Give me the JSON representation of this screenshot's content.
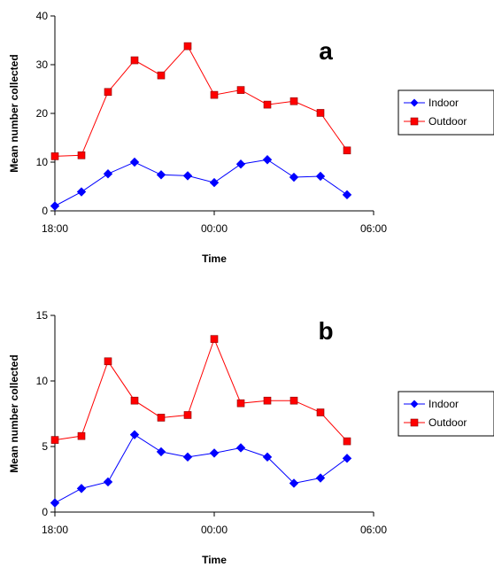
{
  "colors": {
    "indoor": "#0000ff",
    "outdoor": "#ff0000",
    "axis": "#000000"
  },
  "chart_data": [
    {
      "type": "line",
      "panel_label": "a",
      "xlabel": "Time",
      "ylabel": "Mean number collected",
      "x_tick_labels": [
        "18:00",
        "00:00",
        "06:00"
      ],
      "x_hours": [
        18,
        19,
        20,
        21,
        22,
        23,
        24,
        25,
        26,
        27,
        28,
        29
      ],
      "ylim": [
        0,
        40
      ],
      "yticks": [
        0,
        10,
        20,
        30,
        40
      ],
      "legend_position": "right",
      "series": [
        {
          "name": "Indoor",
          "marker": "diamond",
          "values": [
            1.0,
            3.9,
            7.6,
            10.0,
            7.4,
            7.2,
            5.8,
            9.6,
            10.5,
            6.9,
            7.1,
            3.3
          ]
        },
        {
          "name": "Outdoor",
          "marker": "square",
          "values": [
            11.2,
            11.4,
            24.4,
            30.9,
            27.8,
            33.8,
            23.8,
            24.8,
            21.8,
            22.5,
            20.1,
            12.4
          ]
        }
      ]
    },
    {
      "type": "line",
      "panel_label": "b",
      "xlabel": "Time",
      "ylabel": "Mean number collected",
      "x_tick_labels": [
        "18:00",
        "00:00",
        "06:00"
      ],
      "x_hours": [
        18,
        19,
        20,
        21,
        22,
        23,
        24,
        25,
        26,
        27,
        28,
        29
      ],
      "ylim": [
        0,
        15
      ],
      "yticks": [
        0,
        5,
        10,
        15
      ],
      "legend_position": "right",
      "series": [
        {
          "name": "Indoor",
          "marker": "diamond",
          "values": [
            0.7,
            1.8,
            2.3,
            5.9,
            4.6,
            4.2,
            4.5,
            4.9,
            4.2,
            2.2,
            2.6,
            4.1
          ]
        },
        {
          "name": "Outdoor",
          "marker": "square",
          "values": [
            5.5,
            5.8,
            11.5,
            8.5,
            7.2,
            7.4,
            13.2,
            8.3,
            8.5,
            8.5,
            7.6,
            5.4
          ]
        }
      ]
    }
  ]
}
